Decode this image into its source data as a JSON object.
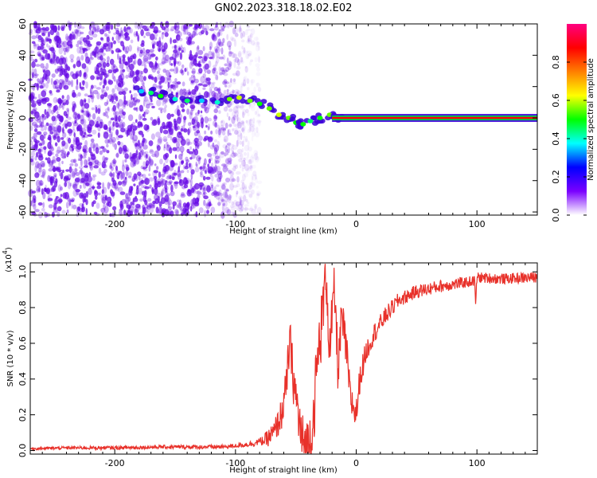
{
  "page_title": "GN02.2023.318.18.02.E02",
  "colors": {
    "axis": "#000000",
    "snr_line": "#e8312a",
    "spectrum_dots": "#6a0ee6",
    "tone_line": "#ff0000",
    "tone_halo": "#00c84a"
  },
  "chart_data": [
    {
      "type": "heatmap",
      "title": "GN02.2023.318.18.02.E02",
      "xlabel": "Height of straight line (km)",
      "ylabel": "Frequency (Hz)",
      "xlim": [
        -270,
        150
      ],
      "ylim": [
        -62,
        60
      ],
      "x_ticks": [
        -200,
        -100,
        0,
        100
      ],
      "x_tick_labels": [
        "-200",
        "-100",
        "0",
        "100"
      ],
      "y_ticks": [
        -60,
        -40,
        -20,
        0,
        20,
        40,
        60
      ],
      "y_tick_labels": [
        "-60",
        "-40",
        "-20",
        "0",
        "20",
        "40",
        "60"
      ],
      "colorbar": {
        "label": "Normalized spectral amplitude",
        "range": [
          0,
          1
        ],
        "ticks": [
          0.0,
          0.2,
          0.4,
          0.6,
          0.8
        ],
        "tick_labels": [
          "0.0",
          "0.2",
          "0.4",
          "0.6",
          "0.8"
        ],
        "colormap": [
          "#ffffff",
          "#7a00ff",
          "#0000ff",
          "#00ffff",
          "#00ff00",
          "#ffff00",
          "#ff7f00",
          "#ff0000",
          "#ff0080"
        ]
      },
      "noise_region": {
        "x_range": [
          -270,
          -80
        ],
        "amplitude": 0.25
      },
      "tone": {
        "frequency_hz": 0,
        "x_start": -20,
        "x_end": 150,
        "amplitude": 1.0
      },
      "ridge_points": [
        {
          "x": -178,
          "y": 17,
          "v": 0.35
        },
        {
          "x": -170,
          "y": 16,
          "v": 0.45
        },
        {
          "x": -162,
          "y": 14,
          "v": 0.5
        },
        {
          "x": -150,
          "y": 12,
          "v": 0.4
        },
        {
          "x": -140,
          "y": 11,
          "v": 0.45
        },
        {
          "x": -128,
          "y": 11,
          "v": 0.35
        },
        {
          "x": -115,
          "y": 10,
          "v": 0.4
        },
        {
          "x": -105,
          "y": 12,
          "v": 0.55
        },
        {
          "x": -97,
          "y": 13,
          "v": 0.6
        },
        {
          "x": -88,
          "y": 11,
          "v": 0.55
        },
        {
          "x": -80,
          "y": 9,
          "v": 0.5
        },
        {
          "x": -72,
          "y": 6,
          "v": 0.55
        },
        {
          "x": -64,
          "y": 2,
          "v": 0.6
        },
        {
          "x": -56,
          "y": 0,
          "v": 0.55
        },
        {
          "x": -50,
          "y": -3,
          "v": 0.5
        },
        {
          "x": -44,
          "y": -4,
          "v": 0.5
        },
        {
          "x": -38,
          "y": -2,
          "v": 0.45
        },
        {
          "x": -30,
          "y": 0,
          "v": 0.5
        },
        {
          "x": -22,
          "y": 2,
          "v": 0.55
        },
        {
          "x": -16,
          "y": 1,
          "v": 0.7
        }
      ]
    },
    {
      "type": "line",
      "title": "",
      "xlabel": "Height of straight line (km)",
      "ylabel": "SNR (10 * v/v)",
      "y_scale_label": "(x10",
      "y_scale_exponent": "4",
      "y_scale_suffix": ")",
      "y_scale_factor": 10000,
      "xlim": [
        -270,
        150
      ],
      "ylim": [
        -0.02,
        1.05
      ],
      "x_ticks": [
        -200,
        -100,
        0,
        100
      ],
      "x_tick_labels": [
        "-200",
        "-100",
        "0",
        "100"
      ],
      "y_ticks": [
        0.0,
        0.2,
        0.4,
        0.6,
        0.8,
        1.0
      ],
      "y_tick_labels": [
        "0.0",
        "0.2",
        "0.4",
        "0.6",
        "0.8",
        "1.0"
      ],
      "series": [
        {
          "values": [
            [
              -270,
              0.01
            ],
            [
              -240,
              0.015
            ],
            [
              -200,
              0.015
            ],
            [
              -160,
              0.02
            ],
            [
              -130,
              0.02
            ],
            [
              -110,
              0.02
            ],
            [
              -95,
              0.03
            ],
            [
              -85,
              0.04
            ],
            [
              -75,
              0.06
            ],
            [
              -68,
              0.1
            ],
            [
              -62,
              0.2
            ],
            [
              -58,
              0.35
            ],
            [
              -55,
              0.62
            ],
            [
              -52,
              0.4
            ],
            [
              -48,
              0.2
            ],
            [
              -45,
              0.05
            ],
            [
              -40,
              0.02
            ],
            [
              -36,
              0.15
            ],
            [
              -32,
              0.5
            ],
            [
              -28,
              0.75
            ],
            [
              -25,
              1.03
            ],
            [
              -22,
              0.55
            ],
            [
              -18,
              0.9
            ],
            [
              -15,
              0.45
            ],
            [
              -12,
              0.75
            ],
            [
              -8,
              0.55
            ],
            [
              -5,
              0.3
            ],
            [
              0,
              0.2
            ],
            [
              3,
              0.4
            ],
            [
              8,
              0.55
            ],
            [
              15,
              0.66
            ],
            [
              25,
              0.76
            ],
            [
              35,
              0.84
            ],
            [
              50,
              0.89
            ],
            [
              70,
              0.92
            ],
            [
              90,
              0.94
            ],
            [
              98,
              0.95
            ],
            [
              99,
              0.82
            ],
            [
              100,
              0.97
            ],
            [
              120,
              0.96
            ],
            [
              150,
              0.97
            ]
          ],
          "noise": [
            [
              -270,
              0.008
            ],
            [
              -100,
              0.012
            ],
            [
              -80,
              0.02
            ],
            [
              -65,
              0.08
            ],
            [
              -50,
              0.15
            ],
            [
              -30,
              0.2
            ],
            [
              -10,
              0.12
            ],
            [
              10,
              0.06
            ],
            [
              40,
              0.04
            ],
            [
              100,
              0.03
            ],
            [
              150,
              0.03
            ]
          ]
        }
      ]
    }
  ]
}
